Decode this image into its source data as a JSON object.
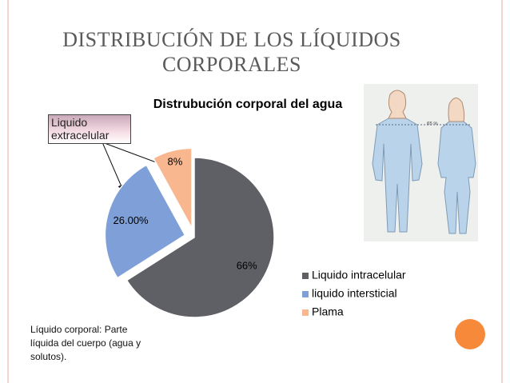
{
  "slide_title": "DISTRIBUCIÓN DE LOS LÍQUIDOS CORPORALES",
  "callout": "Liquido extracelular",
  "note": "Líquido corporal:  Parte líquida del cuerpo (agua y solutos).",
  "figure_label": "65 %",
  "chart_data": {
    "type": "pie",
    "title": "Distrubución corporal del agua",
    "categories": [
      "Liquido intracelular",
      "liquido intersticial",
      "Plama"
    ],
    "values": [
      66,
      26,
      8
    ],
    "value_labels": [
      "66%",
      "26.00%",
      "8%"
    ],
    "colors": [
      "#5f6066",
      "#7f9fd8",
      "#f9b790"
    ],
    "legend": "right"
  }
}
